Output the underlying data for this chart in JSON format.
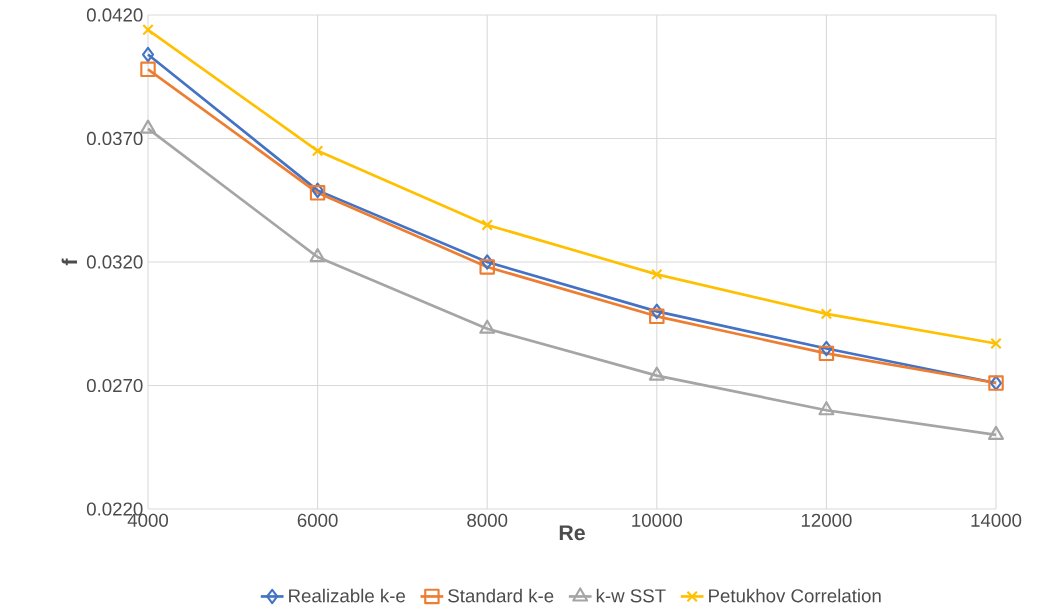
{
  "chart_data": {
    "type": "line",
    "xlabel": "Re",
    "ylabel": "f",
    "x": [
      4000,
      6000,
      8000,
      10000,
      12000,
      14000
    ],
    "series": [
      {
        "name": "Realizable k-e",
        "color": "#4472c4",
        "marker": "diamond",
        "values": [
          0.0404,
          0.0349,
          0.032,
          0.03,
          0.0285,
          0.0271
        ]
      },
      {
        "name": "Standard k-e",
        "color": "#ed7d31",
        "marker": "square",
        "values": [
          0.0398,
          0.0348,
          0.0318,
          0.0298,
          0.0283,
          0.0271
        ]
      },
      {
        "name": "k-w SST",
        "color": "#a5a5a5",
        "marker": "triangle",
        "values": [
          0.0374,
          0.0322,
          0.0293,
          0.0274,
          0.026,
          0.025
        ]
      },
      {
        "name": "Petukhov Correlation",
        "color": "#ffc000",
        "marker": "cross",
        "values": [
          0.0414,
          0.0365,
          0.0335,
          0.0315,
          0.0299,
          0.0287
        ]
      }
    ],
    "xlim": [
      4000,
      14000
    ],
    "xticks": [
      4000,
      6000,
      8000,
      10000,
      12000,
      14000
    ],
    "ylim": [
      0.022,
      0.042
    ],
    "yticks": [
      {
        "value": 0.022,
        "label": "0.0220"
      },
      {
        "value": 0.027,
        "label": "0.0270"
      },
      {
        "value": 0.032,
        "label": "0.0320"
      },
      {
        "value": 0.037,
        "label": "0.0370"
      },
      {
        "value": 0.042,
        "label": "0.0420"
      }
    ],
    "grid": true,
    "legend": "bottom"
  }
}
